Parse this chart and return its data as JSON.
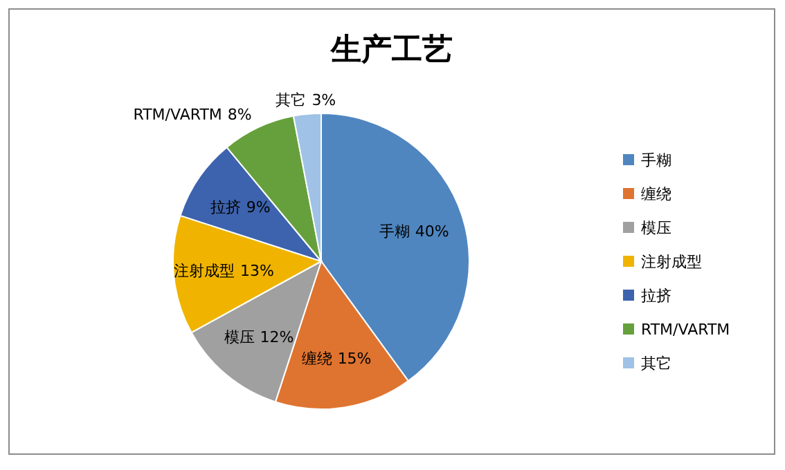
{
  "chart_data": {
    "type": "pie",
    "title": "生产工艺",
    "categories": [
      "手糊",
      "缠绕",
      "模压",
      "注射成型",
      "拉挤",
      "RTM/VARTM",
      "其它"
    ],
    "values": [
      40,
      15,
      12,
      13,
      9,
      8,
      3
    ],
    "colors": [
      "#4f86c0",
      "#df7430",
      "#a0a0a0",
      "#f0b400",
      "#3d63ae",
      "#66a03c",
      "#9fc2e6"
    ],
    "value_labels": [
      "40%",
      "15%",
      "12%",
      "13%",
      "9%",
      "8%",
      "3%"
    ],
    "legend": "right"
  }
}
